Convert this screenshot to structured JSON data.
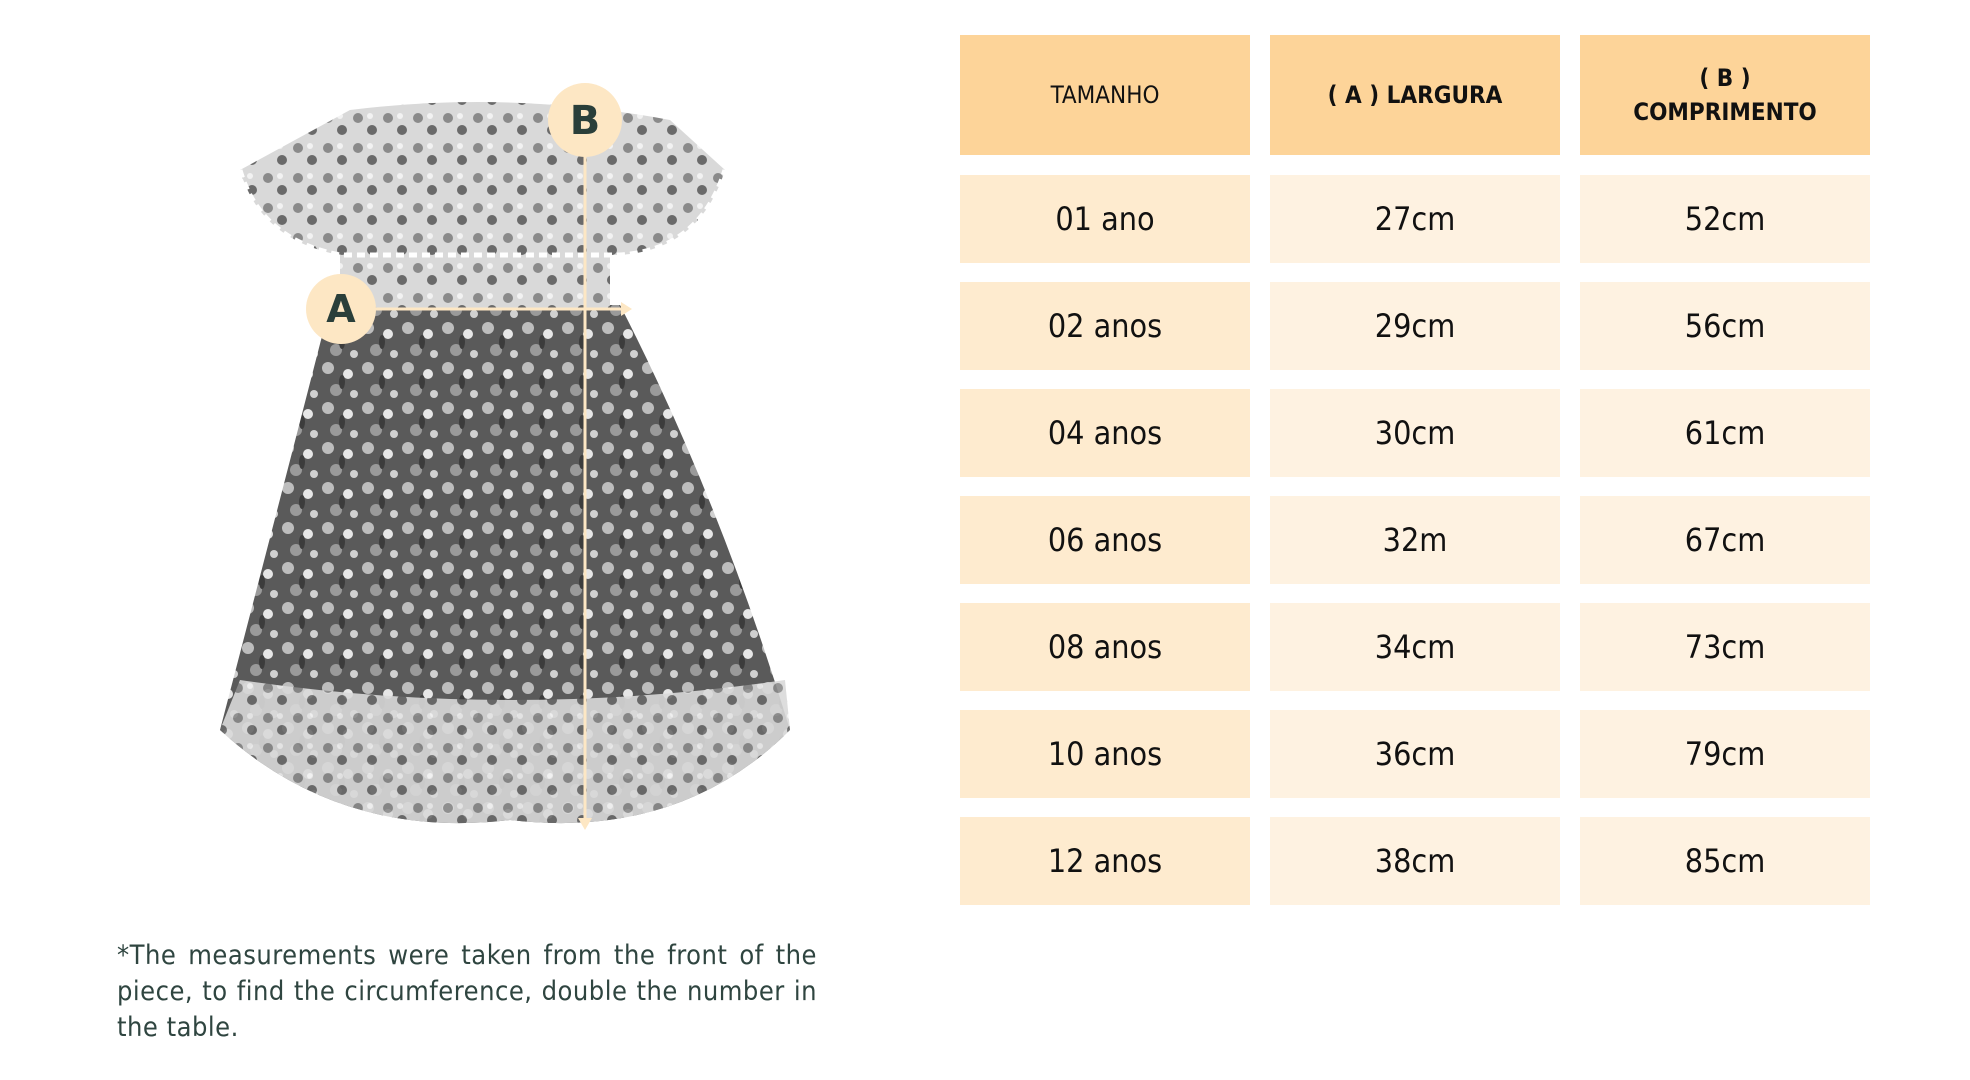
{
  "colors": {
    "header": "#FDD499",
    "size_cell": "#FEEBCF",
    "value_cell": "#FEF2E1",
    "marker": "#FDE7C4",
    "marker_text": "#2a3f3a",
    "note_text": "#2f4540"
  },
  "markers": {
    "a": "A",
    "b": "B"
  },
  "table": {
    "headers": [
      "TAMANHO",
      "( A ) LARGURA",
      "( B )\nCOMPRIMENTO"
    ],
    "rows": [
      [
        "01 ano",
        "27cm",
        "52cm"
      ],
      [
        "02 anos",
        "29cm",
        "56cm"
      ],
      [
        "04 anos",
        "30cm",
        "61cm"
      ],
      [
        "06 anos",
        "32m",
        "67cm"
      ],
      [
        "08 anos",
        "34cm",
        "73cm"
      ],
      [
        "10 anos",
        "36cm",
        "79cm"
      ],
      [
        "12 anos",
        "38cm",
        "85cm"
      ]
    ]
  },
  "note": "*The measurements were taken from the front of the piece, to find the circumference, double the number in the table."
}
